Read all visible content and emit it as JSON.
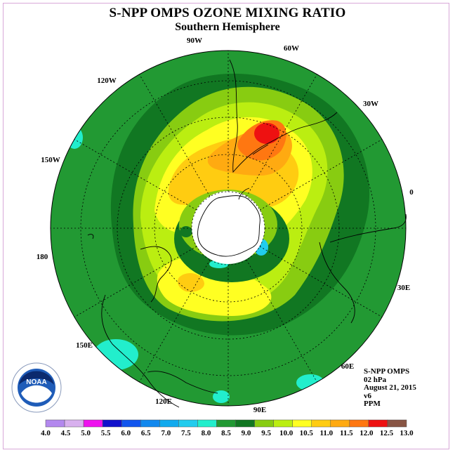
{
  "header": {
    "title": "S-NPP OMPS OZONE MIXING RATIO",
    "subtitle": "Southern Hemisphere"
  },
  "map": {
    "projection": "south-polar-stereographic",
    "longitude_labels": [
      {
        "text": "90W"
      },
      {
        "text": "60W"
      },
      {
        "text": "30W"
      },
      {
        "text": "0"
      },
      {
        "text": "30E"
      },
      {
        "text": "60E"
      },
      {
        "text": "90E"
      },
      {
        "text": "120E"
      },
      {
        "text": "150E"
      },
      {
        "text": "180"
      },
      {
        "text": "150W"
      },
      {
        "text": "120W"
      }
    ],
    "colors": {
      "background_field": "#229933",
      "outer_ring": "#117722"
    }
  },
  "info": {
    "lines": [
      "S-NPP OMPS",
      "02 hPa",
      "August 21, 2015",
      "v6",
      "PPM"
    ]
  },
  "logo": {
    "text": "NOAA"
  },
  "colorbar": {
    "levels": [
      "4.0",
      "4.5",
      "5.0",
      "5.5",
      "6.0",
      "6.5",
      "7.0",
      "7.5",
      "8.0",
      "8.5",
      "9.0",
      "9.5",
      "10.0",
      "10.5",
      "11.0",
      "11.5",
      "12.0",
      "12.5",
      "13.0"
    ],
    "colors": [
      "#b388ee",
      "#d8b0ee",
      "#ee11ee",
      "#1111cc",
      "#1155ee",
      "#1188ee",
      "#11aaee",
      "#22ccee",
      "#22eecc",
      "#229933",
      "#117722",
      "#88cc11",
      "#bbee11",
      "#ffff22",
      "#ffcc11",
      "#ffaa11",
      "#ff7711",
      "#ee1111",
      "#885544"
    ]
  }
}
